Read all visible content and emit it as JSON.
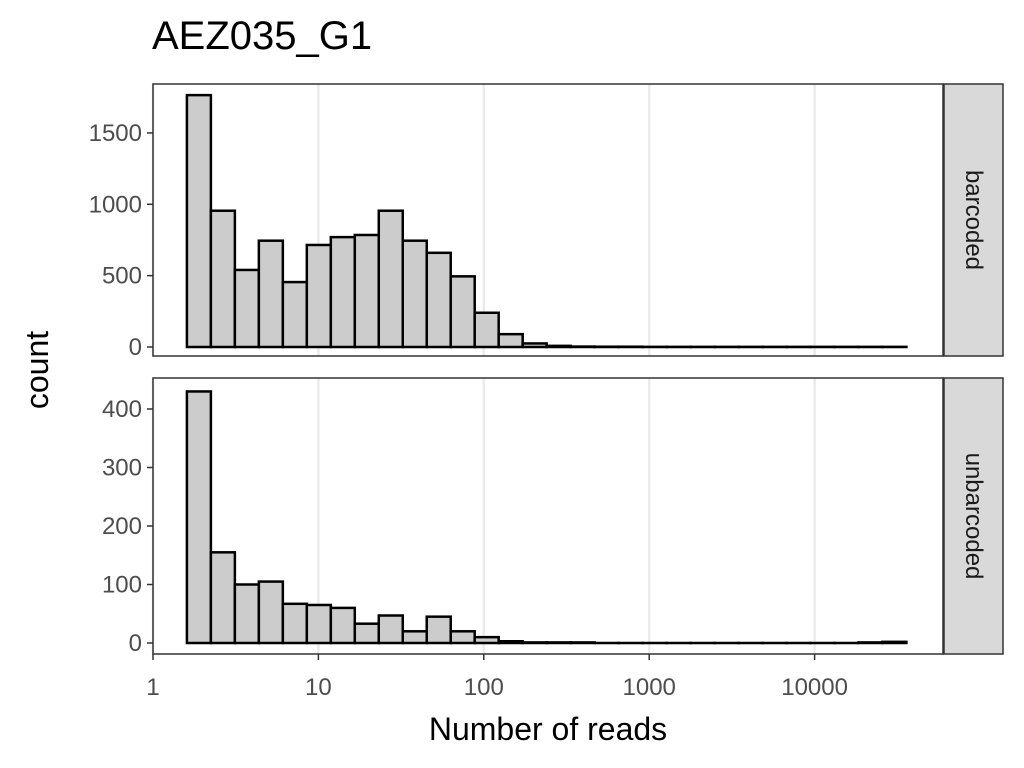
{
  "chart_data": {
    "type": "bar",
    "subtype": "histogram",
    "title": "AEZ035_G1",
    "xlabel": "Number of reads",
    "ylabel": "count",
    "x_scale": "log10",
    "x_ticks": [
      "1",
      "10",
      "100",
      "1000",
      "10000"
    ],
    "x_tick_values": [
      1,
      10,
      100,
      1000,
      10000
    ],
    "grid": true,
    "bin_start_log10": 0.205,
    "bin_width_log10": 0.145,
    "bin_count": 30,
    "facets": [
      {
        "label": "barcoded",
        "y_ticks": [
          "0",
          "500",
          "1000",
          "1500"
        ],
        "y_tick_values": [
          0,
          500,
          1000,
          1500
        ],
        "ylim": [
          -60,
          1840
        ],
        "values": [
          1765,
          955,
          540,
          745,
          455,
          715,
          770,
          785,
          955,
          745,
          660,
          495,
          240,
          90,
          25,
          8,
          3,
          2,
          2,
          1,
          1,
          1,
          1,
          1,
          1,
          1,
          1,
          1,
          1,
          1
        ]
      },
      {
        "label": "unbarcoded",
        "y_ticks": [
          "0",
          "100",
          "200",
          "300",
          "400"
        ],
        "y_tick_values": [
          0,
          100,
          200,
          300,
          400
        ],
        "ylim": [
          -15,
          455
        ],
        "values": [
          430,
          155,
          100,
          105,
          67,
          65,
          60,
          33,
          47,
          20,
          45,
          20,
          10,
          3,
          1,
          1,
          1,
          0,
          0,
          0,
          0,
          0,
          0,
          0,
          0,
          0,
          0,
          0,
          1,
          2
        ]
      }
    ]
  }
}
